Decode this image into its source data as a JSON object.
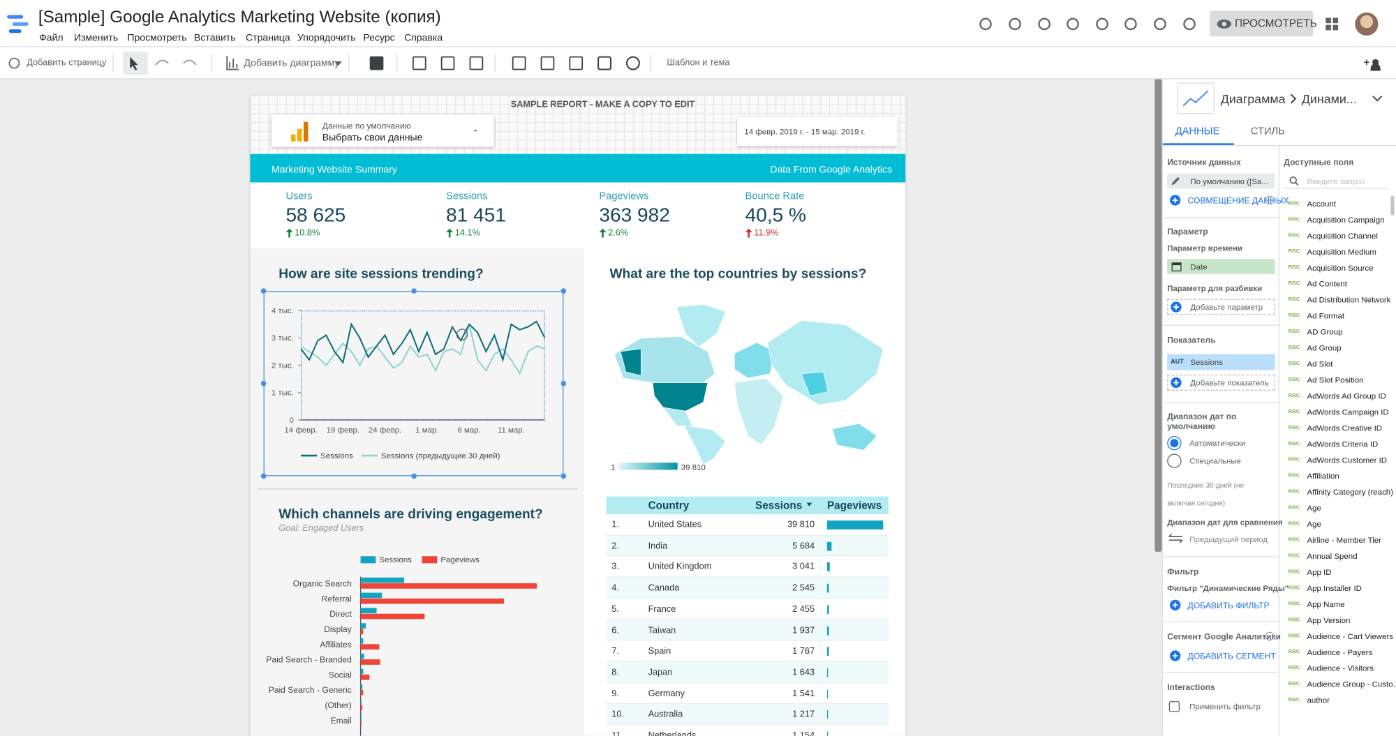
{
  "header": {
    "title": "[Sample] Google Analytics Marketing Website (копия)",
    "menu": [
      "Файл",
      "Изменить",
      "Просмотреть",
      "Вставить",
      "Страница",
      "Упорядочить",
      "Ресурс",
      "Справка"
    ],
    "view_button": "ПРОСМОТРЕТЬ"
  },
  "toolbar": {
    "add_page": "Добавить страницу",
    "add_chart": "Добавить диаграмму",
    "theme": "Шаблон и тема"
  },
  "report": {
    "banner": "SAMPLE REPORT - MAKE A COPY TO EDIT",
    "data_control": {
      "label": "Данные по умолчанию",
      "value": "Выбрать свои данные"
    },
    "date_range": "14 февр. 2019 г. - 15 мар. 2019 г.",
    "summary_bar": {
      "left": "Marketing Website Summary",
      "right": "Data From Google Analytics"
    },
    "scorecards": [
      {
        "label": "Users",
        "value": "58 625",
        "change": "10.8%",
        "direction": "up",
        "color": "#188038"
      },
      {
        "label": "Sessions",
        "value": "81 451",
        "change": "14.1%",
        "direction": "up",
        "color": "#188038"
      },
      {
        "label": "Pageviews",
        "value": "363 982",
        "change": "2.6%",
        "direction": "up",
        "color": "#188038"
      },
      {
        "label": "Bounce Rate",
        "value": "40,5 %",
        "change": "11.9%",
        "direction": "up",
        "color": "#d93025"
      }
    ],
    "sessions_chart": {
      "type": "line",
      "title": "How are site sessions trending?",
      "categories": [
        "14 февр.",
        null,
        null,
        null,
        null,
        "19 февр.",
        null,
        null,
        null,
        null,
        "24 февр.",
        null,
        null,
        null,
        null,
        "1 мар.",
        null,
        null,
        null,
        null,
        "6 мар.",
        null,
        null,
        null,
        null,
        "11 мар.",
        null,
        null,
        null,
        null
      ],
      "series": [
        {
          "name": "Sessions",
          "color": "#0b6e7a",
          "values": [
            2600,
            2200,
            2900,
            3100,
            2500,
            2100,
            3500,
            3000,
            2300,
            2700,
            3100,
            2400,
            2800,
            3300,
            2500,
            3200,
            2400,
            2600,
            3400,
            2900,
            3500,
            3200,
            2500,
            3100,
            2200,
            3500,
            3300,
            3400,
            3600,
            3000
          ]
        },
        {
          "name": "Sessions (предыдущие 30 дней)",
          "color": "#8fd3cf",
          "values": [
            2700,
            2500,
            2300,
            2000,
            2400,
            2800,
            2500,
            2000,
            2600,
            2700,
            2300,
            1900,
            2100,
            2700,
            2300,
            2400,
            1800,
            2500,
            2600,
            2400,
            3500,
            2200,
            1800,
            2400,
            2600,
            2200,
            1700,
            2500,
            2700,
            2600
          ]
        }
      ],
      "ylim": [
        0,
        4000
      ],
      "yticks": [
        0,
        {
          "value": 1000,
          "label": "1 тыс."
        },
        {
          "value": 2000,
          "label": "2 тыс."
        },
        {
          "value": 3000,
          "label": "3 тыс."
        },
        {
          "value": 4000,
          "label": "4 тыс."
        }
      ]
    },
    "channels_chart": {
      "type": "bar",
      "orientation": "horizontal",
      "title": "Which channels are driving engagement?",
      "subtitle": "Goal: Engaged Users",
      "categories": [
        "Organic Search",
        "Referral",
        "Direct",
        "Display",
        "Affiliates",
        "Paid Search - Branded",
        "Social",
        "Paid Search - Generic",
        "(Other)",
        "Email"
      ],
      "series": [
        {
          "name": "Sessions",
          "color": "#12a4c0",
          "values": [
            49000,
            24000,
            18000,
            6000,
            3000,
            4000,
            3000,
            2000,
            1000,
            1000
          ]
        },
        {
          "name": "Pageviews",
          "color": "#ef4438",
          "values": [
            198000,
            161000,
            72000,
            3000,
            21000,
            22000,
            10000,
            3000,
            2000,
            1000
          ]
        }
      ],
      "xlim": [
        0,
        200000
      ]
    },
    "countries_map": {
      "title": "What are the top countries by sessions?",
      "legend_labels": [
        "1",
        "39 810"
      ]
    },
    "countries_table": {
      "columns": [
        "Country",
        "Sessions",
        "Pageviews"
      ],
      "rows": [
        {
          "rank": "1.",
          "country": "United States",
          "sessions": "39 810",
          "pageviews": 160000
        },
        {
          "rank": "2.",
          "country": "India",
          "sessions": "5 684",
          "pageviews": 13000
        },
        {
          "rank": "3.",
          "country": "United Kingdom",
          "sessions": "3 041",
          "pageviews": 7000
        },
        {
          "rank": "4.",
          "country": "Canada",
          "sessions": "2 545",
          "pageviews": 6000
        },
        {
          "rank": "5.",
          "country": "France",
          "sessions": "2 455",
          "pageviews": 5500
        },
        {
          "rank": "6.",
          "country": "Taiwan",
          "sessions": "1 937",
          "pageviews": 4500
        },
        {
          "rank": "7.",
          "country": "Spain",
          "sessions": "1 767",
          "pageviews": 4000
        },
        {
          "rank": "8.",
          "country": "Japan",
          "sessions": "1 643",
          "pageviews": 3800
        },
        {
          "rank": "9.",
          "country": "Germany",
          "sessions": "1 541",
          "pageviews": 3500
        },
        {
          "rank": "10.",
          "country": "Australia",
          "sessions": "1 217",
          "pageviews": 2800
        },
        {
          "rank": "11.",
          "country": "Netherlands",
          "sessions": "1 154",
          "pageviews": 2700
        }
      ]
    }
  },
  "panel": {
    "chart_type": "Диаграмма",
    "chart_name": "Динами...",
    "tabs": [
      "ДАННЫЕ",
      "СТИЛЬ"
    ],
    "data_source_label": "Источник данных",
    "data_source": "По умолчанию ([Sa...",
    "blend": "СОВМЕЩЕНИЕ ДАННЫХ",
    "dimension_label": "Параметр",
    "time_dimension_label": "Параметр времени",
    "time_dimension": "Date",
    "breakdown_label": "Параметр для разбивки",
    "add_dimension": "Добавьте параметр",
    "metric_label": "Показатель",
    "metric_tag": "AUT",
    "metric": "Sessions",
    "add_metric": "Добавьте показатель",
    "date_range_label": "Диапазон дат по умолчанию",
    "auto": "Автоматически",
    "custom": "Специальные",
    "date_range_note": "Последние 30 дней (не включая сегодня)",
    "compare_label": "Диапазон дат для сравнения",
    "compare": "Предыдущий период",
    "filter_label": "Фильтр",
    "filter_name": "Фильтр \"Динамические Ряды\"",
    "add_filter": "ДОБАВИТЬ ФИЛЬТР",
    "segment_label": "Сегмент Google Аналитики",
    "add_segment": "ДОБАВИТЬ СЕГМЕНТ",
    "interactions_label": "Interactions",
    "apply_filter": "Применить фильтр",
    "fields_label": "Доступные поля",
    "search_placeholder": "Введите запрос",
    "field_tag": "RBC",
    "fields": [
      "Account",
      "Acquisition Campaign",
      "Acquisition Channel",
      "Acquisition Medium",
      "Acquisition Source",
      "Ad Content",
      "Ad Distribution Network",
      "Ad Format",
      "AD Group",
      "Ad Group",
      "Ad Slot",
      "Ad Slot Position",
      "AdWords Ad Group ID",
      "AdWords Campaign ID",
      "AdWords Creative ID",
      "AdWords Criteria ID",
      "AdWords Customer ID",
      "Affiliation",
      "Affinity Category (reach)",
      "Age",
      "Age",
      "Airline - Member Tier",
      "Annual Spend",
      "App ID",
      "App Installer ID",
      "App Name",
      "App Version",
      "Audience - Cart Viewers",
      "Audience - Payers",
      "Audience - Visitors",
      "Audience Group - Custo...",
      "author"
    ]
  }
}
